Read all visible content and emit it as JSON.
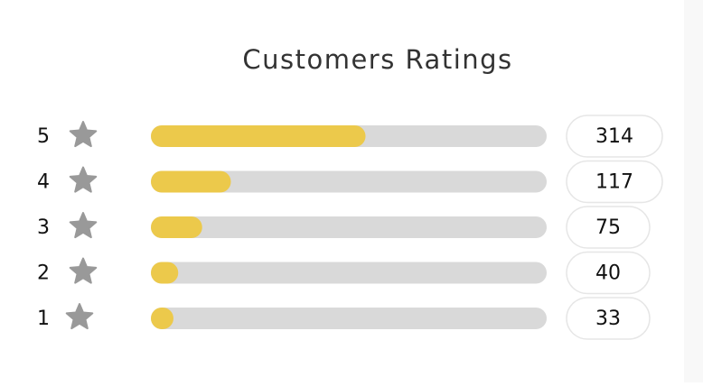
{
  "chart_data": {
    "type": "bar",
    "orientation": "horizontal",
    "title": "Customers Ratings",
    "categories": [
      "5",
      "4",
      "3",
      "2",
      "1"
    ],
    "values": [
      314,
      117,
      75,
      40,
      33
    ],
    "color": "#ecc94b"
  }
}
